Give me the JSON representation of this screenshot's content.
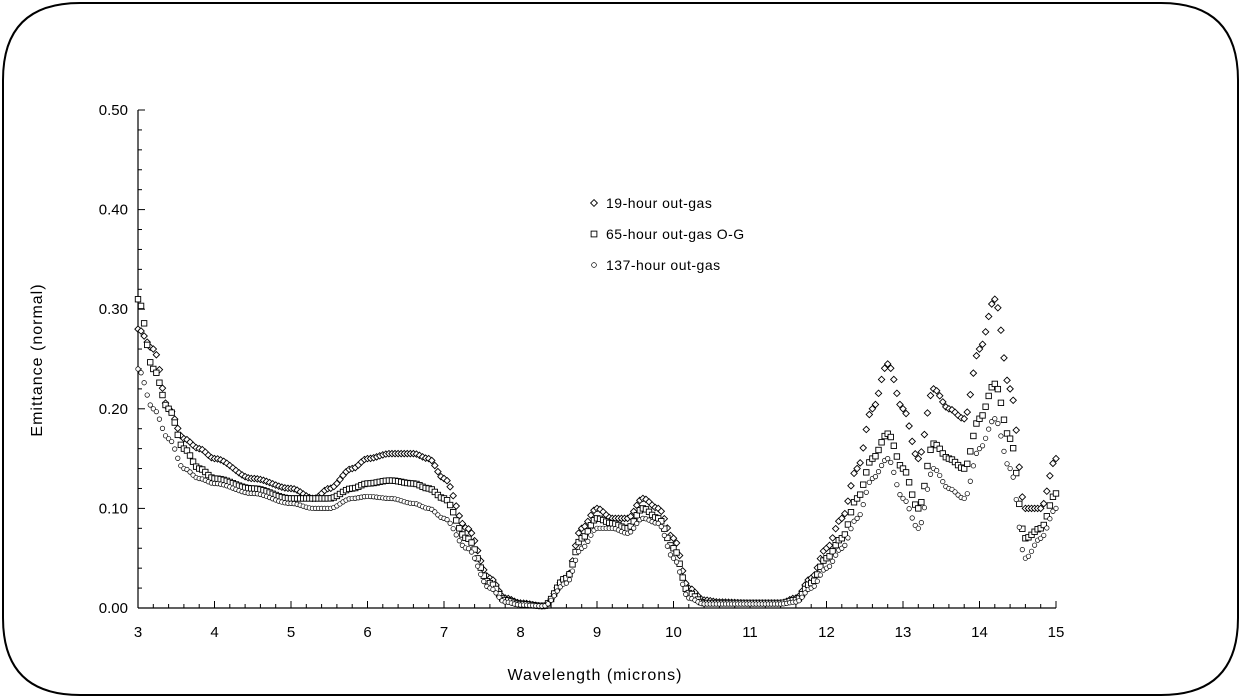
{
  "chart_data": {
    "type": "scatter",
    "title": "",
    "xlabel": "Wavelength (microns)",
    "ylabel": "Emittance (normal)",
    "xlim": [
      3,
      15
    ],
    "ylim": [
      0,
      0.5
    ],
    "xticks": [
      "3",
      "4",
      "5",
      "6",
      "7",
      "8",
      "9",
      "10",
      "11",
      "12",
      "13",
      "14",
      "15"
    ],
    "yticks": [
      "0.00",
      "0.10",
      "0.20",
      "0.30",
      "0.40",
      "0.50"
    ],
    "grid": false,
    "legend_position": "top-center",
    "series": [
      {
        "name": "19-hour out-gas",
        "marker": "diamond",
        "x": [
          3.0,
          3.2,
          3.4,
          3.6,
          3.8,
          4.0,
          4.5,
          5.0,
          5.3,
          5.5,
          5.8,
          6.0,
          6.3,
          6.6,
          6.8,
          7.0,
          7.3,
          7.6,
          7.8,
          8.0,
          8.3,
          8.6,
          8.8,
          9.0,
          9.2,
          9.4,
          9.6,
          9.8,
          10.0,
          10.2,
          10.4,
          10.6,
          11.0,
          11.4,
          11.6,
          11.8,
          12.0,
          12.2,
          12.4,
          12.6,
          12.8,
          13.0,
          13.2,
          13.4,
          13.6,
          13.8,
          14.0,
          14.2,
          14.4,
          14.6,
          14.8,
          15.0
        ],
        "y": [
          0.28,
          0.26,
          0.2,
          0.17,
          0.16,
          0.15,
          0.13,
          0.12,
          0.11,
          0.12,
          0.14,
          0.15,
          0.155,
          0.155,
          0.15,
          0.13,
          0.08,
          0.03,
          0.01,
          0.005,
          0.002,
          0.03,
          0.08,
          0.1,
          0.09,
          0.09,
          0.11,
          0.1,
          0.07,
          0.02,
          0.008,
          0.006,
          0.005,
          0.005,
          0.01,
          0.03,
          0.06,
          0.09,
          0.14,
          0.2,
          0.245,
          0.2,
          0.15,
          0.22,
          0.2,
          0.19,
          0.26,
          0.31,
          0.22,
          0.1,
          0.1,
          0.15
        ]
      },
      {
        "name": "65-hour out-gas O-G",
        "marker": "square",
        "x": [
          3.0,
          3.2,
          3.4,
          3.6,
          3.8,
          4.0,
          4.5,
          5.0,
          5.3,
          5.5,
          5.8,
          6.0,
          6.3,
          6.6,
          6.8,
          7.0,
          7.3,
          7.6,
          7.8,
          8.0,
          8.3,
          8.6,
          8.8,
          9.0,
          9.2,
          9.4,
          9.6,
          9.8,
          10.0,
          10.2,
          10.4,
          10.6,
          11.0,
          11.4,
          11.6,
          11.8,
          12.0,
          12.2,
          12.4,
          12.6,
          12.8,
          13.0,
          13.2,
          13.4,
          13.6,
          13.8,
          14.0,
          14.2,
          14.4,
          14.6,
          14.8,
          15.0
        ],
        "y": [
          0.31,
          0.24,
          0.2,
          0.16,
          0.14,
          0.13,
          0.12,
          0.11,
          0.11,
          0.11,
          0.12,
          0.125,
          0.128,
          0.125,
          0.12,
          0.11,
          0.07,
          0.025,
          0.008,
          0.004,
          0.002,
          0.03,
          0.07,
          0.09,
          0.085,
          0.08,
          0.1,
          0.09,
          0.06,
          0.015,
          0.005,
          0.005,
          0.005,
          0.005,
          0.008,
          0.025,
          0.05,
          0.07,
          0.11,
          0.15,
          0.175,
          0.14,
          0.1,
          0.165,
          0.15,
          0.14,
          0.19,
          0.225,
          0.17,
          0.07,
          0.08,
          0.115
        ]
      },
      {
        "name": "137-hour out-gas",
        "marker": "circle",
        "x": [
          3.0,
          3.2,
          3.4,
          3.6,
          3.8,
          4.0,
          4.5,
          5.0,
          5.3,
          5.5,
          5.8,
          6.0,
          6.3,
          6.6,
          6.8,
          7.0,
          7.3,
          7.6,
          7.8,
          8.0,
          8.3,
          8.6,
          8.8,
          9.0,
          9.2,
          9.4,
          9.6,
          9.8,
          10.0,
          10.2,
          10.4,
          10.6,
          11.0,
          11.4,
          11.6,
          11.8,
          12.0,
          12.2,
          12.4,
          12.6,
          12.8,
          13.0,
          13.2,
          13.4,
          13.6,
          13.8,
          14.0,
          14.2,
          14.4,
          14.6,
          14.8,
          15.0
        ],
        "y": [
          0.24,
          0.2,
          0.17,
          0.14,
          0.13,
          0.125,
          0.115,
          0.105,
          0.1,
          0.1,
          0.11,
          0.112,
          0.11,
          0.105,
          0.1,
          0.09,
          0.06,
          0.02,
          0.006,
          0.003,
          0.002,
          0.025,
          0.06,
          0.08,
          0.08,
          0.075,
          0.09,
          0.085,
          0.05,
          0.01,
          0.004,
          0.004,
          0.004,
          0.004,
          0.006,
          0.02,
          0.04,
          0.06,
          0.09,
          0.13,
          0.15,
          0.11,
          0.08,
          0.14,
          0.12,
          0.11,
          0.16,
          0.19,
          0.14,
          0.05,
          0.07,
          0.1
        ]
      }
    ]
  }
}
